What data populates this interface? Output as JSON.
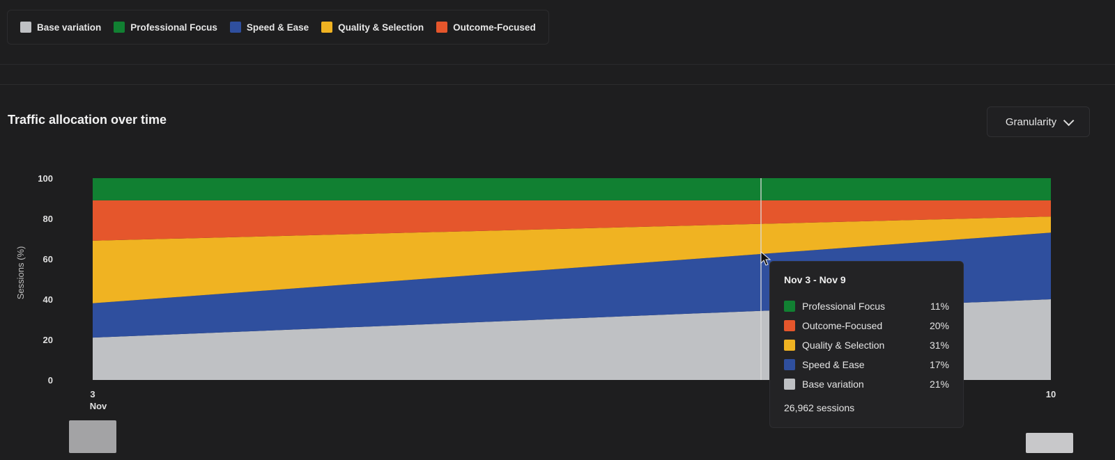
{
  "legend": [
    {
      "label": "Base variation",
      "color": "#bfc1c4"
    },
    {
      "label": "Professional Focus",
      "color": "#118032"
    },
    {
      "label": "Speed & Ease",
      "color": "#2f4f9e"
    },
    {
      "label": "Quality & Selection",
      "color": "#f0b322"
    },
    {
      "label": "Outcome-Focused",
      "color": "#e5562c"
    }
  ],
  "panel": {
    "title": "Traffic allocation over time",
    "granularity_label": "Granularity"
  },
  "chart_data": {
    "type": "area",
    "stacked": true,
    "ylabel": "Sessions (%)",
    "ylim": [
      0,
      100
    ],
    "yticks": [
      0,
      20,
      40,
      60,
      80,
      100
    ],
    "x_tick_labels": [
      {
        "line1": "3",
        "line2": "Nov"
      },
      {
        "line1": "10",
        "line2": ""
      }
    ],
    "x": [
      "Nov 3",
      "Nov 10"
    ],
    "series": [
      {
        "name": "Base variation",
        "color": "#bfc1c4",
        "values": [
          21,
          40
        ]
      },
      {
        "name": "Speed & Ease",
        "color": "#2f4f9e",
        "values": [
          17,
          33
        ]
      },
      {
        "name": "Quality & Selection",
        "color": "#f0b322",
        "values": [
          31,
          8
        ]
      },
      {
        "name": "Outcome-Focused",
        "color": "#e5562c",
        "values": [
          20,
          8
        ]
      },
      {
        "name": "Professional Focus",
        "color": "#118032",
        "values": [
          11,
          11
        ]
      }
    ]
  },
  "tooltip": {
    "title": "Nov 3 - Nov 9",
    "rows": [
      {
        "label": "Professional Focus",
        "value": "11%",
        "color": "#118032"
      },
      {
        "label": "Outcome-Focused",
        "value": "20%",
        "color": "#e5562c"
      },
      {
        "label": "Quality & Selection",
        "value": "31%",
        "color": "#f0b322"
      },
      {
        "label": "Speed & Ease",
        "value": "17%",
        "color": "#2f4f9e"
      },
      {
        "label": "Base variation",
        "value": "21%",
        "color": "#bfc1c4"
      }
    ],
    "footer": "26,962 sessions"
  }
}
